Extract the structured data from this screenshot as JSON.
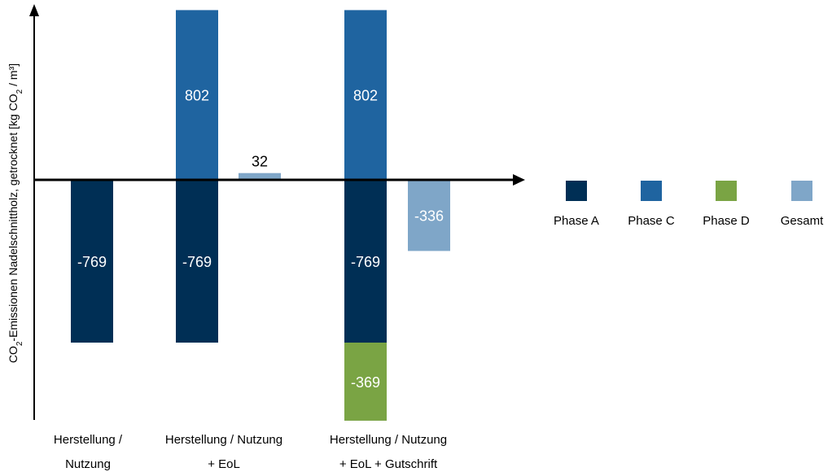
{
  "chart_data": {
    "type": "bar",
    "stacked": true,
    "ylabel": {
      "part1": "CO",
      "sub1": "2",
      "part2": "-Emissionen Nadelschnittholz, getrocknet [kg CO",
      "sub2": "2",
      "part3": " / m³]"
    },
    "ylim": [
      -1000,
      1000
    ],
    "grid": false,
    "legend_position": "right",
    "colors": {
      "phase_a": "#002f55",
      "phase_c": "#1f64a0",
      "phase_d": "#7aa444",
      "gesamt": "#7fa6c8"
    },
    "legend": [
      {
        "key": "phase_a",
        "label": "Phase A"
      },
      {
        "key": "phase_c",
        "label": "Phase C"
      },
      {
        "key": "phase_d",
        "label": "Phase D"
      },
      {
        "key": "gesamt",
        "label": "Gesamt"
      }
    ],
    "groups": [
      {
        "label_line1": "Herstellung /",
        "label_line2": "Nutzung",
        "bars": [
          {
            "segments": [
              {
                "series": "phase_a",
                "value": -769,
                "label": "-769"
              }
            ]
          }
        ]
      },
      {
        "label_line1": "Herstellung / Nutzung",
        "label_line2": "+ EoL",
        "bars": [
          {
            "segments": [
              {
                "series": "phase_a",
                "value": -769,
                "label": "-769"
              },
              {
                "series": "phase_c",
                "value": 802,
                "label": "802"
              }
            ]
          },
          {
            "segments": [
              {
                "series": "gesamt",
                "value": 32,
                "label": "32",
                "label_outside": true
              }
            ]
          }
        ]
      },
      {
        "label_line1": "Herstellung / Nutzung",
        "label_line2": "+ EoL + Gutschrift",
        "bars": [
          {
            "segments": [
              {
                "series": "phase_a",
                "value": -769,
                "label": "-769"
              },
              {
                "series": "phase_c",
                "value": 802,
                "label": "802"
              },
              {
                "series": "phase_d",
                "value": -369,
                "label": "-369"
              }
            ]
          },
          {
            "segments": [
              {
                "series": "gesamt",
                "value": -336,
                "label": "-336"
              }
            ]
          }
        ]
      }
    ]
  }
}
